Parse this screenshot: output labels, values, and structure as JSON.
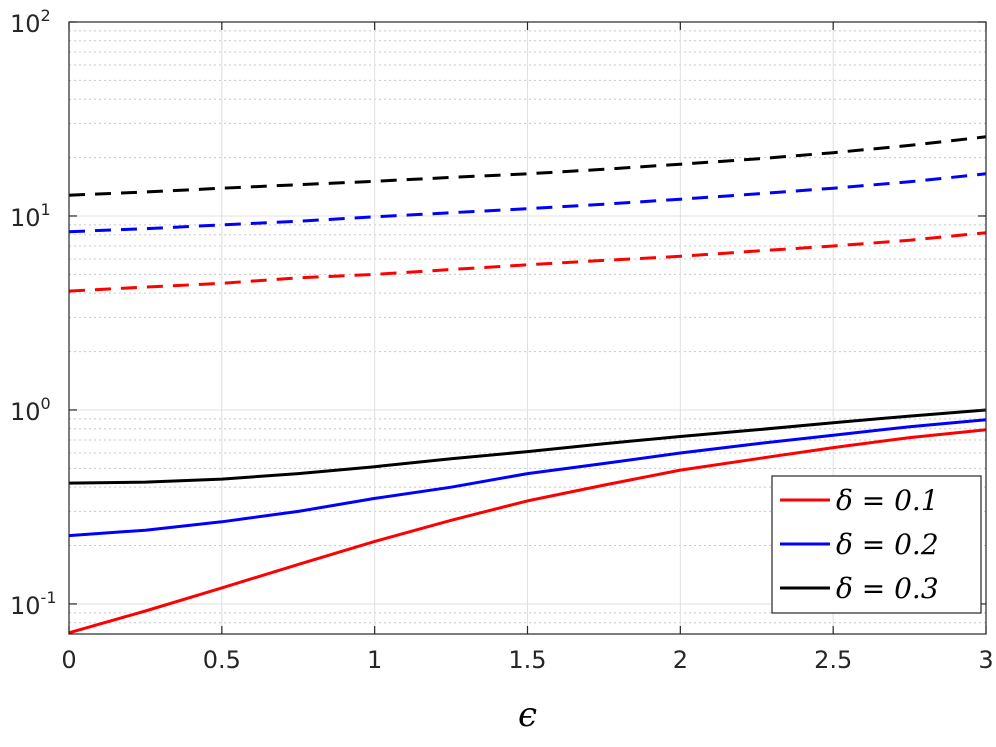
{
  "chart_data": {
    "type": "line",
    "title": "",
    "xlabel": "ϵ",
    "ylabel": "",
    "xlim": [
      0,
      3
    ],
    "ylim": [
      0.07,
      100
    ],
    "yscale": "log",
    "grid": true,
    "x_ticks": [
      0,
      0.5,
      1,
      1.5,
      2,
      2.5,
      3
    ],
    "x_tick_labels": [
      "0",
      "0.5",
      "1",
      "1.5",
      "2",
      "2.5",
      "3"
    ],
    "y_ticks": [
      0.1,
      1,
      10,
      100
    ],
    "y_tick_labels": [
      {
        "base": "10",
        "exp": "-1"
      },
      {
        "base": "10",
        "exp": "0"
      },
      {
        "base": "10",
        "exp": "1"
      },
      {
        "base": "10",
        "exp": "2"
      }
    ],
    "legend_position": "bottom-right",
    "legend_entries": [
      {
        "label": "δ = 0.1",
        "color": "#ff0000"
      },
      {
        "label": "δ = 0.2",
        "color": "#0000ff"
      },
      {
        "label": "δ = 0.3",
        "color": "#000000"
      }
    ],
    "x": [
      0,
      0.25,
      0.5,
      0.75,
      1.0,
      1.25,
      1.5,
      1.75,
      2.0,
      2.25,
      2.5,
      2.75,
      3.0
    ],
    "series": [
      {
        "color": "#ff0000",
        "dash": false,
        "values": [
          0.071,
          0.092,
          0.121,
          0.16,
          0.21,
          0.27,
          0.34,
          0.41,
          0.49,
          0.56,
          0.64,
          0.72,
          0.79
        ]
      },
      {
        "color": "#0000ff",
        "dash": false,
        "values": [
          0.225,
          0.24,
          0.265,
          0.3,
          0.35,
          0.4,
          0.47,
          0.53,
          0.6,
          0.67,
          0.74,
          0.82,
          0.89
        ]
      },
      {
        "color": "#000000",
        "dash": false,
        "values": [
          0.42,
          0.425,
          0.44,
          0.47,
          0.51,
          0.56,
          0.61,
          0.67,
          0.73,
          0.79,
          0.86,
          0.93,
          1.0
        ]
      },
      {
        "color": "#ff0000",
        "dash": true,
        "values": [
          4.1,
          4.3,
          4.5,
          4.8,
          5.0,
          5.3,
          5.6,
          5.9,
          6.2,
          6.6,
          7.0,
          7.5,
          8.2
        ]
      },
      {
        "color": "#0000ff",
        "dash": true,
        "values": [
          8.3,
          8.6,
          9.0,
          9.4,
          9.9,
          10.4,
          10.9,
          11.5,
          12.2,
          13.0,
          13.9,
          15.0,
          16.5
        ]
      },
      {
        "color": "#000000",
        "dash": true,
        "values": [
          12.8,
          13.3,
          13.9,
          14.5,
          15.1,
          15.8,
          16.5,
          17.4,
          18.5,
          19.7,
          21.2,
          23.1,
          25.6
        ]
      }
    ]
  }
}
